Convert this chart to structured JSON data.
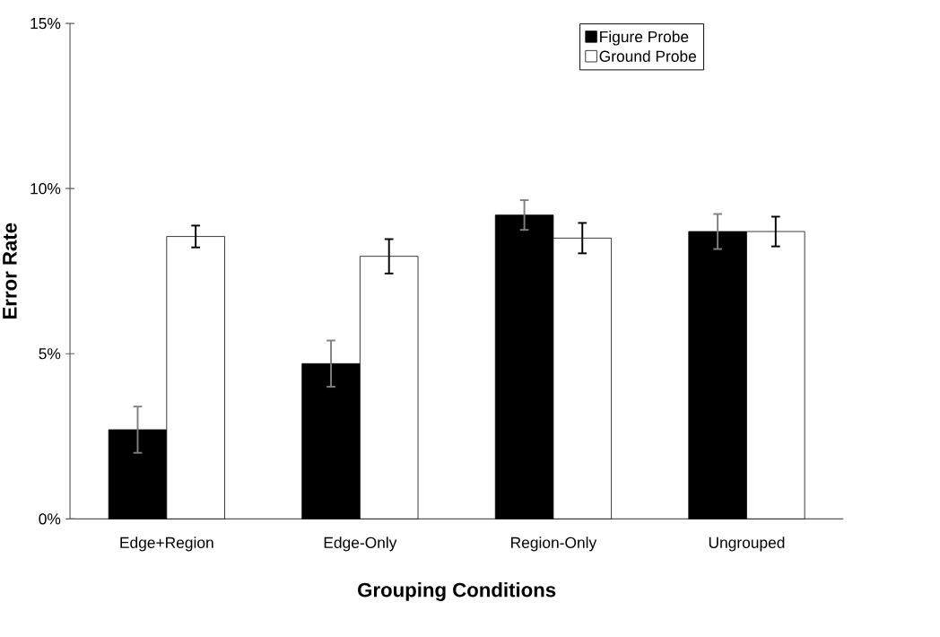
{
  "chart_data": {
    "type": "bar",
    "xlabel": "Grouping Conditions",
    "ylabel": "Error Rate",
    "categories": [
      "Edge+Region",
      "Edge-Only",
      "Region-Only",
      "Ungrouped"
    ],
    "series": [
      {
        "name": "Figure Probe",
        "color": "#000000",
        "values": [
          2.7,
          4.7,
          9.2,
          8.7
        ],
        "errors": [
          0.7,
          0.7,
          0.45,
          0.53
        ]
      },
      {
        "name": "Ground Probe",
        "color": "#ffffff",
        "values": [
          8.55,
          7.95,
          8.5,
          8.7
        ],
        "errors": [
          0.33,
          0.52,
          0.46,
          0.45
        ]
      }
    ],
    "ylim": [
      0,
      15
    ],
    "yticks": [
      {
        "value": 0,
        "label": "0%"
      },
      {
        "value": 5,
        "label": "5%"
      },
      {
        "value": 10,
        "label": "10%"
      },
      {
        "value": 15,
        "label": "15%"
      }
    ],
    "grid": false,
    "legend": "top right"
  }
}
